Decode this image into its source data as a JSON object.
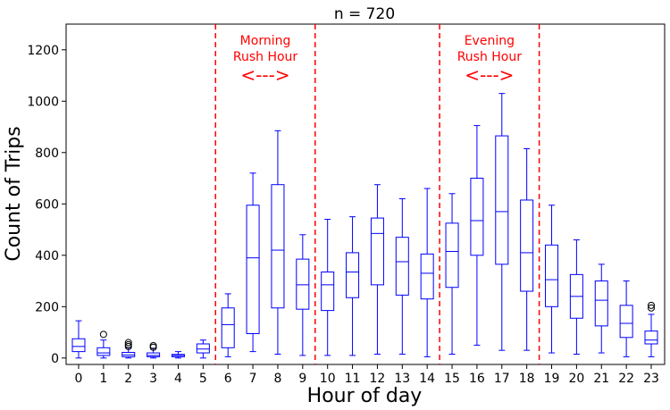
{
  "chart_data": {
    "type": "box",
    "title": "n = 720",
    "xlabel": "Hour of day",
    "ylabel": "Count of Trips",
    "ylim": [
      -25,
      1300
    ],
    "yticks": [
      0,
      200,
      400,
      600,
      800,
      1000,
      1200
    ],
    "categories": [
      "0",
      "1",
      "2",
      "3",
      "4",
      "5",
      "6",
      "7",
      "8",
      "9",
      "10",
      "11",
      "12",
      "13",
      "14",
      "15",
      "16",
      "17",
      "18",
      "19",
      "20",
      "21",
      "22",
      "23"
    ],
    "boxes": [
      {
        "hour": 0,
        "whislo": 0,
        "q1": 25,
        "med": 45,
        "q3": 75,
        "whishi": 145,
        "fliers": []
      },
      {
        "hour": 1,
        "whislo": 0,
        "q1": 10,
        "med": 20,
        "q3": 40,
        "whishi": 70,
        "fliers": [
          92
        ]
      },
      {
        "hour": 2,
        "whislo": 0,
        "q1": 5,
        "med": 12,
        "q3": 22,
        "whishi": 40,
        "fliers": [
          45,
          52,
          60
        ]
      },
      {
        "hour": 3,
        "whislo": 0,
        "q1": 5,
        "med": 10,
        "q3": 20,
        "whishi": 38,
        "fliers": [
          42,
          48
        ]
      },
      {
        "hour": 4,
        "whislo": 0,
        "q1": 5,
        "med": 10,
        "q3": 14,
        "whishi": 25,
        "fliers": []
      },
      {
        "hour": 5,
        "whislo": 0,
        "q1": 20,
        "med": 35,
        "q3": 55,
        "whishi": 70,
        "fliers": []
      },
      {
        "hour": 6,
        "whislo": 5,
        "q1": 40,
        "med": 130,
        "q3": 195,
        "whishi": 250,
        "fliers": []
      },
      {
        "hour": 7,
        "whislo": 25,
        "q1": 95,
        "med": 390,
        "q3": 595,
        "whishi": 720,
        "fliers": []
      },
      {
        "hour": 8,
        "whislo": 15,
        "q1": 195,
        "med": 420,
        "q3": 675,
        "whishi": 885,
        "fliers": []
      },
      {
        "hour": 9,
        "whislo": 10,
        "q1": 190,
        "med": 285,
        "q3": 385,
        "whishi": 480,
        "fliers": []
      },
      {
        "hour": 10,
        "whislo": 10,
        "q1": 185,
        "med": 285,
        "q3": 335,
        "whishi": 540,
        "fliers": []
      },
      {
        "hour": 11,
        "whislo": 10,
        "q1": 235,
        "med": 335,
        "q3": 410,
        "whishi": 550,
        "fliers": []
      },
      {
        "hour": 12,
        "whislo": 15,
        "q1": 285,
        "med": 485,
        "q3": 545,
        "whishi": 675,
        "fliers": []
      },
      {
        "hour": 13,
        "whislo": 15,
        "q1": 245,
        "med": 375,
        "q3": 470,
        "whishi": 620,
        "fliers": []
      },
      {
        "hour": 14,
        "whislo": 5,
        "q1": 230,
        "med": 330,
        "q3": 405,
        "whishi": 660,
        "fliers": []
      },
      {
        "hour": 15,
        "whislo": 15,
        "q1": 275,
        "med": 415,
        "q3": 525,
        "whishi": 640,
        "fliers": []
      },
      {
        "hour": 16,
        "whislo": 50,
        "q1": 400,
        "med": 535,
        "q3": 700,
        "whishi": 905,
        "fliers": []
      },
      {
        "hour": 17,
        "whislo": 30,
        "q1": 365,
        "med": 570,
        "q3": 865,
        "whishi": 1030,
        "fliers": []
      },
      {
        "hour": 18,
        "whislo": 30,
        "q1": 260,
        "med": 410,
        "q3": 615,
        "whishi": 815,
        "fliers": []
      },
      {
        "hour": 19,
        "whislo": 20,
        "q1": 200,
        "med": 305,
        "q3": 440,
        "whishi": 595,
        "fliers": []
      },
      {
        "hour": 20,
        "whislo": 15,
        "q1": 155,
        "med": 240,
        "q3": 325,
        "whishi": 460,
        "fliers": []
      },
      {
        "hour": 21,
        "whislo": 20,
        "q1": 125,
        "med": 225,
        "q3": 300,
        "whishi": 365,
        "fliers": []
      },
      {
        "hour": 22,
        "whislo": 5,
        "q1": 80,
        "med": 135,
        "q3": 205,
        "whishi": 300,
        "fliers": []
      },
      {
        "hour": 23,
        "whislo": 5,
        "q1": 55,
        "med": 70,
        "q3": 105,
        "whishi": 170,
        "fliers": [
          195,
          205
        ]
      }
    ],
    "reference_lines": [
      {
        "x": 5.5,
        "color": "#ff0000",
        "style": "dashed"
      },
      {
        "x": 9.5,
        "color": "#ff0000",
        "style": "dashed"
      },
      {
        "x": 14.5,
        "color": "#ff0000",
        "style": "dashed"
      },
      {
        "x": 18.5,
        "color": "#ff0000",
        "style": "dashed"
      }
    ],
    "annotations": [
      {
        "text_line1": "Morning",
        "text_line2": "Rush Hour",
        "arrow": "<--->",
        "x_center": 7.5,
        "color": "#ff0000"
      },
      {
        "text_line1": "Evening",
        "text_line2": "Rush Hour",
        "arrow": "<--->",
        "x_center": 16.5,
        "color": "#ff0000"
      }
    ],
    "colors": {
      "box": "#0000ff",
      "annotation": "#ff0000",
      "axis": "#000000"
    },
    "grid": false
  }
}
